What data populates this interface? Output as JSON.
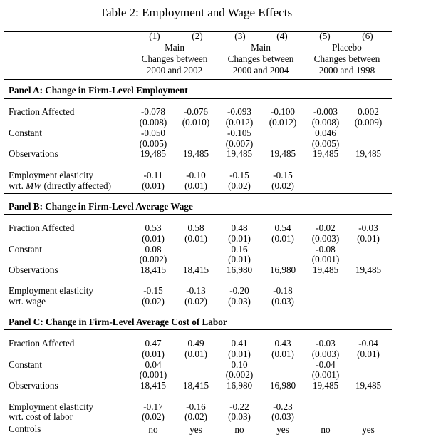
{
  "title": "Table 2: Employment and Wage Effects",
  "columns": [
    "(1)",
    "(2)",
    "(3)",
    "(4)",
    "(5)",
    "(6)"
  ],
  "groups": [
    {
      "line1": "Main",
      "line2": "Changes between",
      "line3": "2000 and 2002"
    },
    {
      "line1": "Main",
      "line2": "Changes between",
      "line3": "2000 and 2004"
    },
    {
      "line1": "Placebo",
      "line2": "Changes between",
      "line3": "2000 and 1998"
    }
  ],
  "panels": [
    {
      "title": "Panel A: Change in Firm-Level Employment",
      "fa_label": "Fraction Affected",
      "fa": [
        "-0.078",
        "-0.076",
        "-0.093",
        "-0.100",
        "-0.003",
        "0.002"
      ],
      "fa_se": [
        "(0.008)",
        "(0.010)",
        "(0.012)",
        "(0.012)",
        "(0.008)",
        "(0.009)"
      ],
      "const_label": "Constant",
      "const": [
        "-0.050",
        "-0.105",
        "0.046"
      ],
      "const_se": [
        "(0.005)",
        "(0.007)",
        "(0.005)"
      ],
      "obs_label": "Observations",
      "obs": [
        "19,485",
        "19,485",
        "19,485",
        "19,485",
        "19,485",
        "19,485"
      ],
      "el_label1": "Employment elasticity",
      "el_label2_prefix": "wrt. ",
      "el_label2_em": "MW",
      "el_label2_suffix": " (directly affected)",
      "el": [
        "-0.11",
        "-0.10",
        "-0.15",
        "-0.15"
      ],
      "el_se": [
        "(0.01)",
        "(0.01)",
        "(0.02)",
        "(0.02)"
      ]
    },
    {
      "title": "Panel B: Change in Firm-Level Average Wage",
      "fa_label": "Fraction Affected",
      "fa": [
        "0.53",
        "0.58",
        "0.48",
        "0.54",
        "-0.02",
        "-0.03"
      ],
      "fa_se": [
        "(0.01)",
        "(0.01)",
        "(0.01)",
        "(0.01)",
        "(0.003)",
        "(0.01)"
      ],
      "const_label": "Constant",
      "const": [
        "0.08",
        "0.16",
        "-0.08"
      ],
      "const_se": [
        "(0.002)",
        "(0.01)",
        "(0.001)"
      ],
      "obs_label": "Observations",
      "obs": [
        "18,415",
        "18,415",
        "16,980",
        "16,980",
        "19,485",
        "19,485"
      ],
      "el_label1": "Employment elasticity",
      "el_label2": "wrt. wage",
      "el": [
        "-0.15",
        "-0.13",
        "-0.20",
        "-0.18"
      ],
      "el_se": [
        "(0.02)",
        "(0.02)",
        "(0.03)",
        "(0.03)"
      ]
    },
    {
      "title": "Panel C: Change in Firm-Level Average Cost of Labor",
      "fa_label": "Fraction Affected",
      "fa": [
        "0.47",
        "0.49",
        "0.41",
        "0.43",
        "-0.03",
        "-0.04"
      ],
      "fa_se": [
        "(0.01)",
        "(0.01)",
        "(0.01)",
        "(0.01)",
        "(0.003)",
        "(0.01)"
      ],
      "const_label": "Constant",
      "const": [
        "0.04",
        "0.10",
        "-0.04"
      ],
      "const_se": [
        "(0.001)",
        "(0.002)",
        "(0.001)"
      ],
      "obs_label": "Observations",
      "obs": [
        "18,415",
        "18,415",
        "16,980",
        "16,980",
        "19,485",
        "19,485"
      ],
      "el_label1": "Employment elasticity",
      "el_label2": "wrt. cost of labor",
      "el": [
        "-0.17",
        "-0.16",
        "-0.22",
        "-0.23"
      ],
      "el_se": [
        "(0.02)",
        "(0.02)",
        "(0.03)",
        "(0.03)"
      ]
    }
  ],
  "controls_label": "Controls",
  "controls": [
    "no",
    "yes",
    "no",
    "yes",
    "no",
    "yes"
  ]
}
